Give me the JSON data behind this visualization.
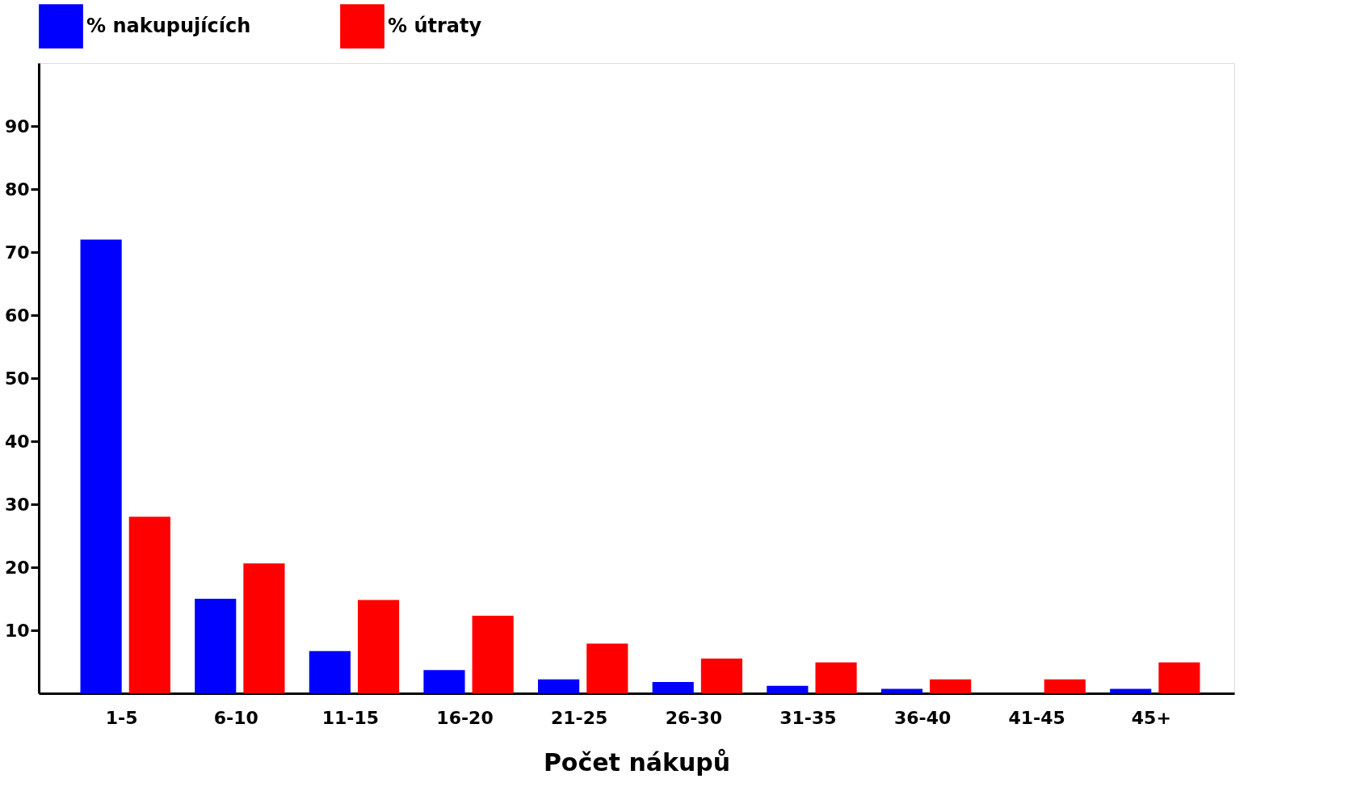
{
  "chart_data": {
    "type": "bar",
    "xlabel": "Počet nákupů",
    "categories": [
      "1-5",
      "6-10",
      "11-15",
      "16-20",
      "21-25",
      "26-30",
      "31-35",
      "36-40",
      "41-45",
      "45+"
    ],
    "series": [
      {
        "name": "% nakupujících",
        "color": "#0000ff",
        "values": [
          72,
          15,
          6.7,
          3.7,
          2.2,
          1.8,
          1.2,
          0.7,
          0,
          0.7
        ]
      },
      {
        "name": "% útraty",
        "color": "#ff0000",
        "values": [
          28,
          20.6,
          14.8,
          12.3,
          7.9,
          5.5,
          4.9,
          2.2,
          2.2,
          4.9
        ]
      }
    ],
    "ylim": [
      0,
      100
    ],
    "yticks": [
      10,
      20,
      30,
      40,
      50,
      60,
      70,
      80,
      90
    ],
    "grid": false,
    "legend": "top"
  }
}
